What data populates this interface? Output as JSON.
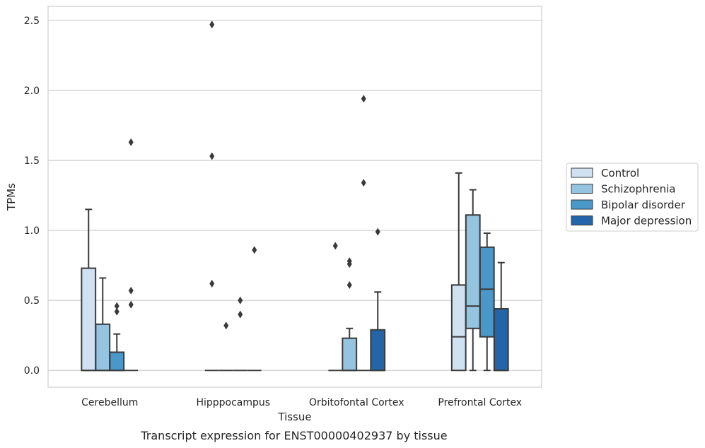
{
  "caption": "Transcript expression for ENST00000402937 by tissue",
  "chart_data": {
    "type": "box",
    "xlabel": "Tissue",
    "ylabel": "TPMs",
    "ylim": [
      -0.12,
      2.6
    ],
    "yticks": [
      0.0,
      0.5,
      1.0,
      1.5,
      2.0,
      2.5
    ],
    "ytick_labels": [
      "0.0",
      "0.5",
      "1.0",
      "1.5",
      "2.0",
      "2.5"
    ],
    "grid": true,
    "legend_position": "right",
    "categories": [
      "Cerebellum",
      "Hipppocampus",
      "Orbitofontal Cortex",
      "Prefrontal Cortex"
    ],
    "series": [
      {
        "name": "Control",
        "color": "#d0e1f2",
        "boxes": [
          {
            "q1": 0.0,
            "median": 0.0,
            "q3": 0.73,
            "whislo": 0.0,
            "whishi": 1.15,
            "fliers": []
          },
          {
            "q1": 0.0,
            "median": 0.0,
            "q3": 0.0,
            "whislo": 0.0,
            "whishi": 0.0,
            "fliers": [
              2.47,
              1.53,
              0.62
            ]
          },
          {
            "q1": 0.0,
            "median": 0.0,
            "q3": 0.0,
            "whislo": 0.0,
            "whishi": 0.0,
            "fliers": [
              0.89
            ]
          },
          {
            "q1": 0.0,
            "median": 0.24,
            "q3": 0.61,
            "whislo": 0.0,
            "whishi": 1.41,
            "fliers": []
          }
        ]
      },
      {
        "name": "Schizophrenia",
        "color": "#94c4df",
        "boxes": [
          {
            "q1": 0.0,
            "median": 0.0,
            "q3": 0.33,
            "whislo": 0.0,
            "whishi": 0.66,
            "fliers": []
          },
          {
            "q1": 0.0,
            "median": 0.0,
            "q3": 0.0,
            "whislo": 0.0,
            "whishi": 0.0,
            "fliers": [
              0.32
            ]
          },
          {
            "q1": 0.0,
            "median": 0.0,
            "q3": 0.23,
            "whislo": 0.0,
            "whishi": 0.3,
            "fliers": [
              0.78,
              0.76,
              0.61
            ]
          },
          {
            "q1": 0.3,
            "median": 0.46,
            "q3": 1.11,
            "whislo": 0.0,
            "whishi": 1.29,
            "fliers": []
          }
        ]
      },
      {
        "name": "Bipolar disorder",
        "color": "#4a98c9",
        "boxes": [
          {
            "q1": 0.0,
            "median": 0.0,
            "q3": 0.13,
            "whislo": 0.0,
            "whishi": 0.26,
            "fliers": [
              0.46,
              0.42
            ]
          },
          {
            "q1": 0.0,
            "median": 0.0,
            "q3": 0.0,
            "whislo": 0.0,
            "whishi": 0.0,
            "fliers": [
              0.5,
              0.4
            ]
          },
          {
            "q1": 0.0,
            "median": 0.0,
            "q3": 0.0,
            "whislo": 0.0,
            "whishi": 0.0,
            "fliers": [
              1.94,
              1.34
            ]
          },
          {
            "q1": 0.24,
            "median": 0.58,
            "q3": 0.88,
            "whislo": 0.0,
            "whishi": 0.98,
            "fliers": []
          }
        ]
      },
      {
        "name": "Major depression",
        "color": "#2464a8",
        "boxes": [
          {
            "q1": 0.0,
            "median": 0.0,
            "q3": 0.0,
            "whislo": 0.0,
            "whishi": 0.0,
            "fliers": [
              1.63,
              0.57,
              0.47
            ]
          },
          {
            "q1": 0.0,
            "median": 0.0,
            "q3": 0.0,
            "whislo": 0.0,
            "whishi": 0.0,
            "fliers": [
              0.86
            ]
          },
          {
            "q1": 0.0,
            "median": 0.0,
            "q3": 0.29,
            "whislo": 0.0,
            "whishi": 0.56,
            "fliers": [
              0.99
            ]
          },
          {
            "q1": 0.0,
            "median": 0.0,
            "q3": 0.44,
            "whislo": 0.0,
            "whishi": 0.77,
            "fliers": []
          }
        ]
      }
    ]
  }
}
